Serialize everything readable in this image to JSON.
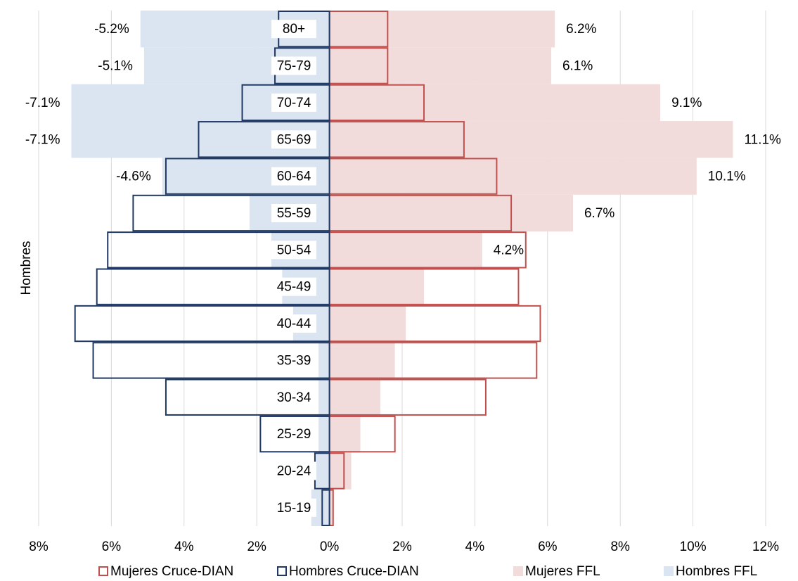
{
  "chart_data": {
    "type": "pyramid",
    "y_label": "Hombres",
    "categories": [
      "80+",
      "75-79",
      "70-74",
      "65-69",
      "60-64",
      "55-59",
      "50-54",
      "45-49",
      "40-44",
      "35-39",
      "30-34",
      "25-29",
      "20-24",
      "15-19"
    ],
    "series": [
      {
        "name": "Mujeres Cruce-DIAN",
        "color": "#c0504d",
        "style": "outline",
        "values": [
          1.6,
          1.6,
          2.6,
          3.7,
          4.6,
          5.0,
          5.4,
          5.2,
          5.8,
          5.7,
          4.3,
          1.8,
          0.4,
          0.1
        ]
      },
      {
        "name": "Hombres Cruce-DIAN",
        "color": "#1f3864",
        "style": "outline",
        "values": [
          -1.4,
          -1.5,
          -2.4,
          -3.6,
          -4.5,
          -5.4,
          -6.1,
          -6.4,
          -7.0,
          -6.5,
          -4.5,
          -1.9,
          -0.4,
          -0.2
        ]
      },
      {
        "name": "Mujeres FFL",
        "color": "#f2dcdb",
        "style": "filled",
        "values": [
          6.2,
          6.1,
          9.1,
          11.1,
          10.1,
          6.7,
          4.2,
          2.6,
          2.1,
          1.8,
          1.4,
          0.85,
          0.6,
          0.1
        ],
        "value_labels": [
          "6.2%",
          "6.1%",
          "9.1%",
          "11.1%",
          "10.1%",
          "6.7%",
          "4.2%",
          null,
          null,
          null,
          null,
          null,
          null,
          null
        ]
      },
      {
        "name": "Hombres FFL",
        "color": "#dae5f1",
        "style": "filled",
        "values": [
          -5.2,
          -5.1,
          -7.1,
          -7.1,
          -4.6,
          -2.2,
          -1.6,
          -1.3,
          -1.0,
          -0.3,
          -0.3,
          -0.3,
          -0.4,
          -0.5
        ],
        "value_labels": [
          "-5.2%",
          "-5.1%",
          "-7.1%",
          "-7.1%",
          "-4.6%",
          null,
          null,
          null,
          null,
          null,
          null,
          null,
          null,
          null
        ]
      }
    ],
    "xlim": [
      -8,
      12
    ],
    "xticks": [
      {
        "value": -8,
        "label": "8%"
      },
      {
        "value": -6,
        "label": "6%"
      },
      {
        "value": -4,
        "label": "4%"
      },
      {
        "value": -2,
        "label": "2%"
      },
      {
        "value": 0,
        "label": "0%"
      },
      {
        "value": 2,
        "label": "2%"
      },
      {
        "value": 4,
        "label": "4%"
      },
      {
        "value": 6,
        "label": "6%"
      },
      {
        "value": 8,
        "label": "8%"
      },
      {
        "value": 10,
        "label": "10%"
      },
      {
        "value": 12,
        "label": "12%"
      }
    ],
    "grid": true
  }
}
